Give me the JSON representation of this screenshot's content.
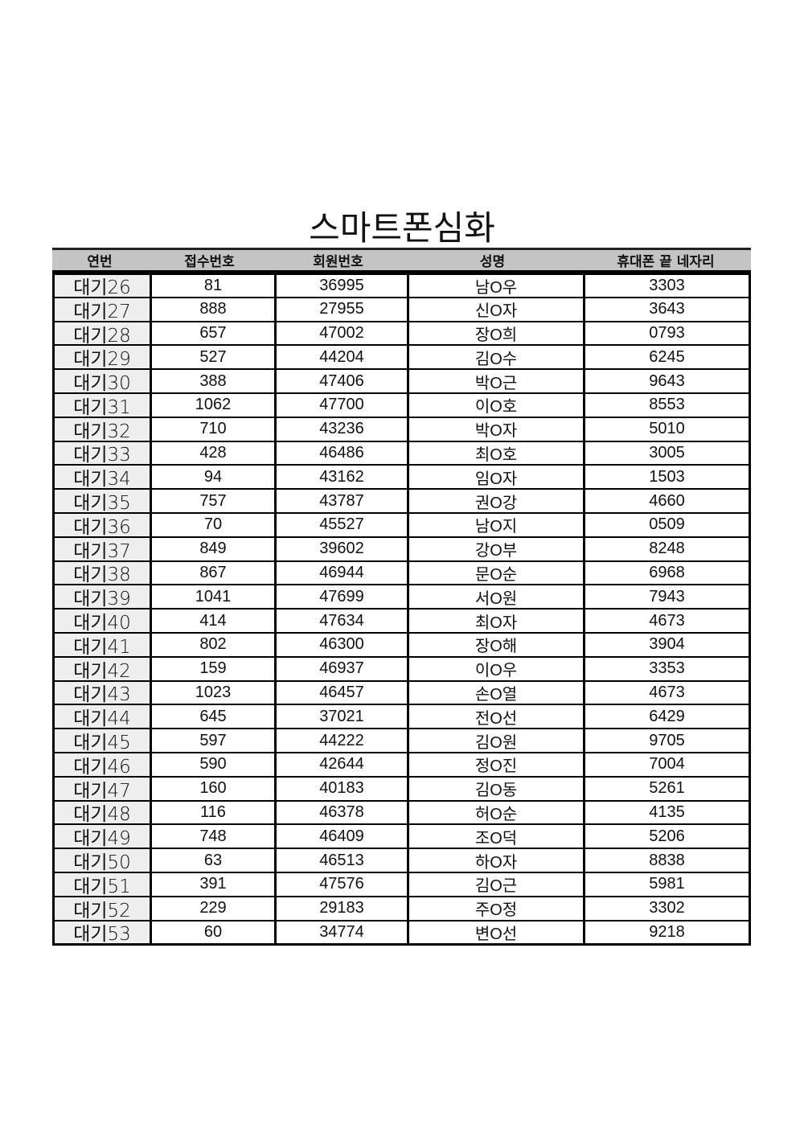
{
  "title": "스마트폰심화",
  "columns": [
    "연번",
    "접수번호",
    "회원번호",
    "성명",
    "휴대폰 끝 네자리"
  ],
  "rows": [
    [
      "대기26",
      "81",
      "36995",
      "남O우",
      "3303"
    ],
    [
      "대기27",
      "888",
      "27955",
      "신O자",
      "3643"
    ],
    [
      "대기28",
      "657",
      "47002",
      "장O희",
      "0793"
    ],
    [
      "대기29",
      "527",
      "44204",
      "김O수",
      "6245"
    ],
    [
      "대기30",
      "388",
      "47406",
      "박O근",
      "9643"
    ],
    [
      "대기31",
      "1062",
      "47700",
      "이O호",
      "8553"
    ],
    [
      "대기32",
      "710",
      "43236",
      "박O자",
      "5010"
    ],
    [
      "대기33",
      "428",
      "46486",
      "최O호",
      "3005"
    ],
    [
      "대기34",
      "94",
      "43162",
      "임O자",
      "1503"
    ],
    [
      "대기35",
      "757",
      "43787",
      "권O강",
      "4660"
    ],
    [
      "대기36",
      "70",
      "45527",
      "남O지",
      "0509"
    ],
    [
      "대기37",
      "849",
      "39602",
      "강O부",
      "8248"
    ],
    [
      "대기38",
      "867",
      "46944",
      "문O순",
      "6968"
    ],
    [
      "대기39",
      "1041",
      "47699",
      "서O원",
      "7943"
    ],
    [
      "대기40",
      "414",
      "47634",
      "최O자",
      "4673"
    ],
    [
      "대기41",
      "802",
      "46300",
      "장O해",
      "3904"
    ],
    [
      "대기42",
      "159",
      "46937",
      "이O우",
      "3353"
    ],
    [
      "대기43",
      "1023",
      "46457",
      "손O열",
      "4673"
    ],
    [
      "대기44",
      "645",
      "37021",
      "전O선",
      "6429"
    ],
    [
      "대기45",
      "597",
      "44222",
      "김O원",
      "9705"
    ],
    [
      "대기46",
      "590",
      "42644",
      "정O진",
      "7004"
    ],
    [
      "대기47",
      "160",
      "40183",
      "김O동",
      "5261"
    ],
    [
      "대기48",
      "116",
      "46378",
      "허O순",
      "4135"
    ],
    [
      "대기49",
      "748",
      "46409",
      "조O덕",
      "5206"
    ],
    [
      "대기50",
      "63",
      "46513",
      "하O자",
      "8838"
    ],
    [
      "대기51",
      "391",
      "47576",
      "김O근",
      "5981"
    ],
    [
      "대기52",
      "229",
      "29183",
      "주O정",
      "3302"
    ],
    [
      "대기53",
      "60",
      "34774",
      "변O선",
      "9218"
    ]
  ]
}
